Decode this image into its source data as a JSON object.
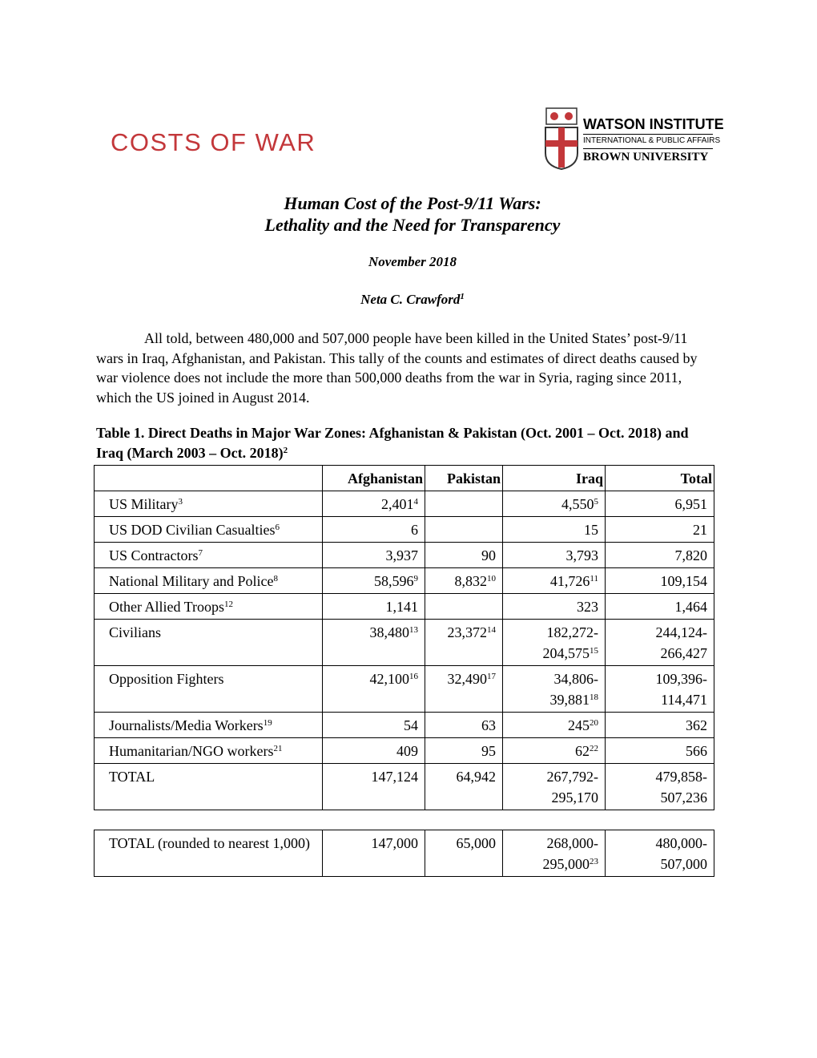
{
  "header": {
    "left_logo": "COSTS OF WAR",
    "right_logo": {
      "name": "WATSON INSTITUTE",
      "subtitle": "INTERNATIONAL & PUBLIC AFFAIRS",
      "university": "BROWN UNIVERSITY"
    }
  },
  "title": [
    "Human Cost of the Post-9/11 Wars:",
    "Lethality and the Need for Transparency"
  ],
  "date": "November 2018",
  "author": {
    "name": "Neta C. Crawford",
    "note": "1"
  },
  "paragraph": "All told, between 480,000 and 507,000 people have been killed in the United States’ post-9/11 wars in Iraq, Afghanistan, and Pakistan. This tally of the counts and estimates of direct deaths caused by war violence does not include the more than 500,000 deaths from the war in Syria, raging since 2011, which the US joined in August 2014.",
  "table": {
    "caption": "Table 1. Direct Deaths in Major War Zones: Afghanistan & Pakistan (Oct. 2001 – Oct. 2018) and Iraq (March 2003 – Oct. 2018)",
    "caption_note": "2",
    "columns": [
      "Afghanistan",
      "Pakistan",
      "Iraq",
      "Total"
    ],
    "rows": [
      {
        "label": "US Military",
        "label_note": "3",
        "cells": [
          {
            "text": "2,401",
            "note": "4"
          },
          null,
          {
            "text": "4,550",
            "note": "5"
          },
          {
            "text": "6,951"
          }
        ]
      },
      {
        "label": "US DOD Civilian Casualties",
        "label_note": "6",
        "cells": [
          {
            "text": "6"
          },
          null,
          {
            "text": "15"
          },
          {
            "text": "21"
          }
        ]
      },
      {
        "label": "US Contractors",
        "label_note": "7",
        "cells": [
          {
            "text": "3,937"
          },
          {
            "text": "90"
          },
          {
            "text": "3,793"
          },
          {
            "text": "7,820"
          }
        ]
      },
      {
        "label": "National Military and Police",
        "label_note": "8",
        "cells": [
          {
            "text": "58,596",
            "note": "9"
          },
          {
            "text": "8,832",
            "note": "10"
          },
          {
            "text": "41,726",
            "note": "11"
          },
          {
            "text": "109,154"
          }
        ]
      },
      {
        "label": "Other Allied Troops",
        "label_note": "12",
        "cells": [
          {
            "text": "1,141"
          },
          null,
          {
            "text": "323"
          },
          {
            "text": "1,464"
          }
        ]
      },
      {
        "label": "Civilians",
        "cells": [
          {
            "text": "38,480",
            "note": "13"
          },
          {
            "text": "23,372",
            "note": "14"
          },
          {
            "text": [
              "182,272-",
              "204,575"
            ],
            "note": "15"
          },
          {
            "text": [
              "244,124-",
              "266,427"
            ]
          }
        ]
      },
      {
        "label": "Opposition Fighters",
        "cells": [
          {
            "text": "42,100",
            "note": "16"
          },
          {
            "text": "32,490",
            "note": "17"
          },
          {
            "text": [
              "34,806-",
              "39,881"
            ],
            "note": "18"
          },
          {
            "text": [
              "109,396-",
              "114,471"
            ]
          }
        ]
      },
      {
        "label": "Journalists/Media Workers",
        "label_note": "19",
        "cells": [
          {
            "text": "54"
          },
          {
            "text": "63"
          },
          {
            "text": "245",
            "note": "20"
          },
          {
            "text": "362"
          }
        ]
      },
      {
        "label": "Humanitarian/NGO workers",
        "label_note": "21",
        "cells": [
          {
            "text": "409"
          },
          {
            "text": "95"
          },
          {
            "text": "62",
            "note": "22"
          },
          {
            "text": "566"
          }
        ]
      },
      {
        "label": "TOTAL",
        "cells": [
          {
            "text": "147,124"
          },
          {
            "text": "64,942"
          },
          {
            "text": [
              "267,792-",
              "295,170"
            ]
          },
          {
            "text": [
              "479,858-",
              "507,236"
            ]
          }
        ]
      }
    ],
    "rounded_row": {
      "label": "TOTAL (rounded to nearest 1,000)",
      "cells": [
        {
          "text": "147,000"
        },
        {
          "text": "65,000"
        },
        {
          "text": [
            "268,000-",
            "295,000"
          ],
          "note": "23"
        },
        {
          "text": [
            "480,000-",
            "507,000"
          ]
        }
      ]
    }
  }
}
